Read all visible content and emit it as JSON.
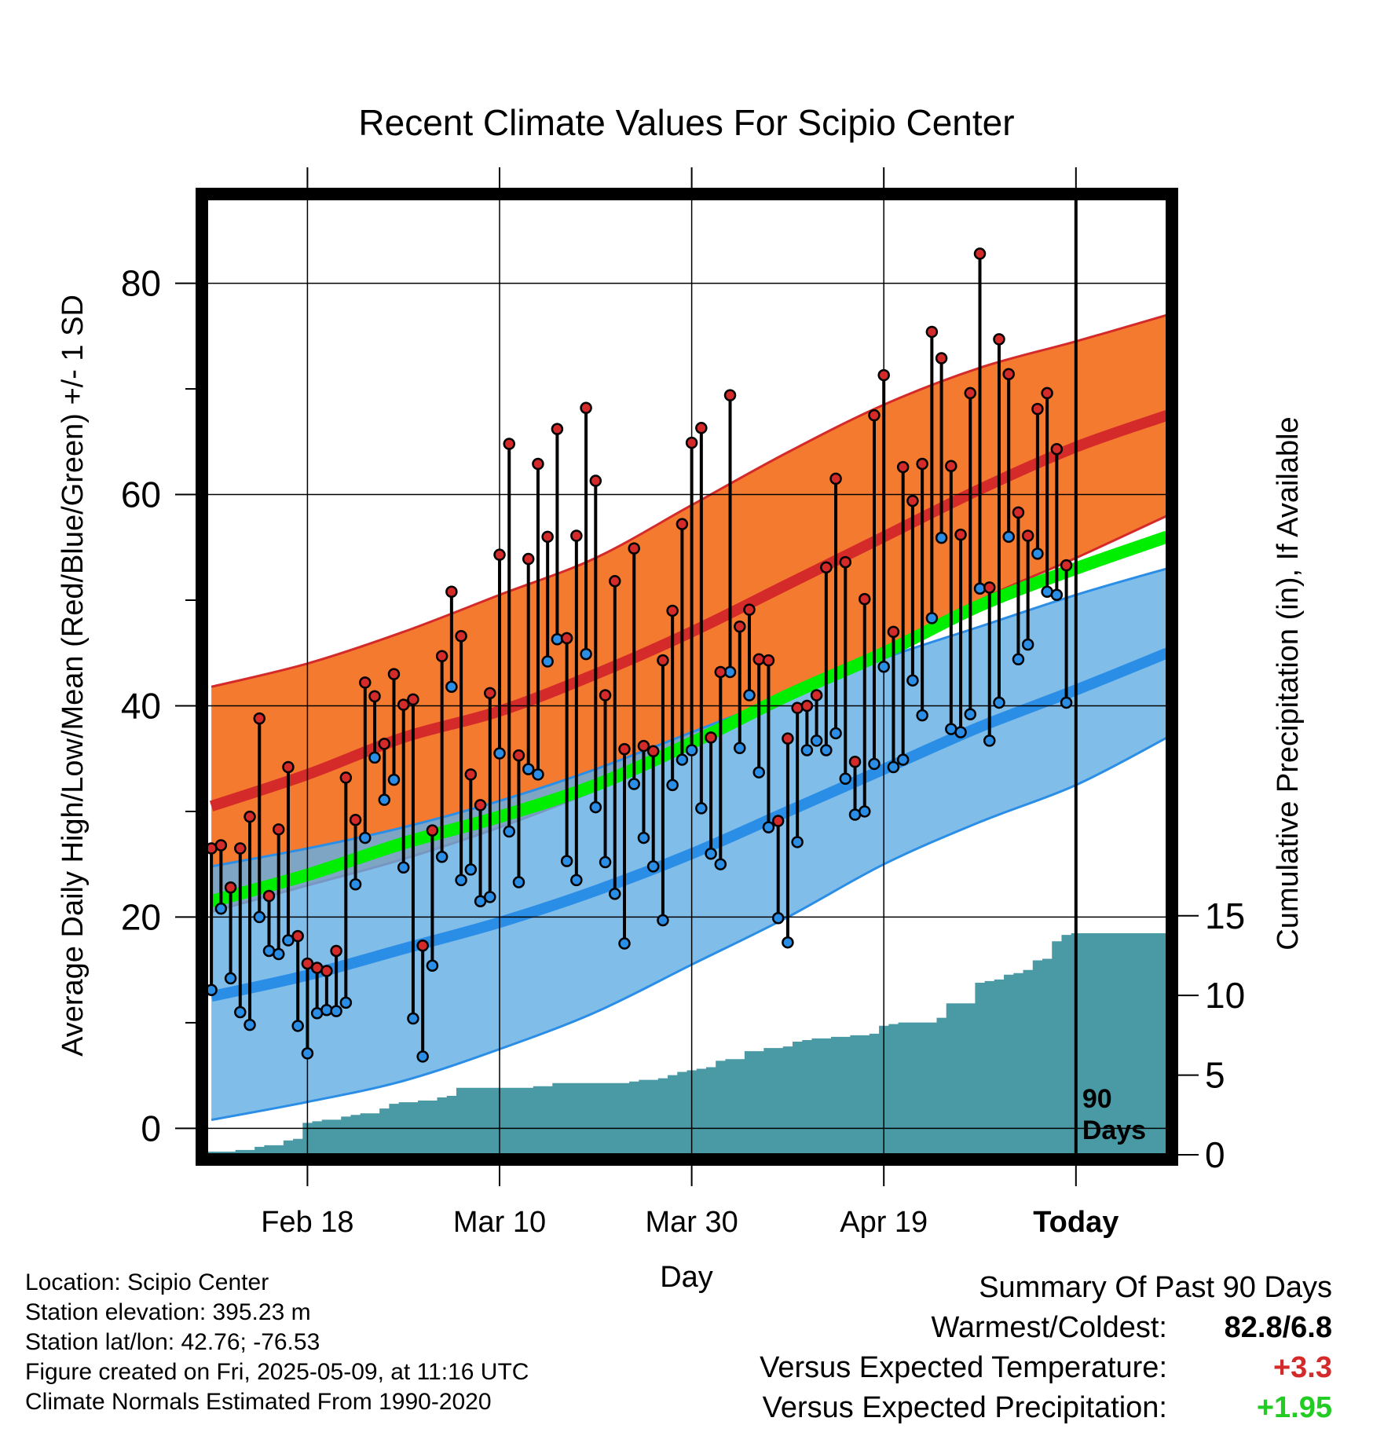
{
  "chart_data": {
    "type": "line",
    "title": "Recent Climate Values For Scipio Center",
    "xlabel": "Day",
    "ylabel": "Average Daily High/Low/Mean (Red/Blue/Green) +/- 1 SD",
    "y2label": "Cumulative Precipitation (in), If Available",
    "ylim": [
      -2.5,
      88
    ],
    "y2lim": [
      0,
      60
    ],
    "yticks": [
      0,
      20,
      40,
      60,
      80
    ],
    "y2ticks": [
      0,
      5,
      10,
      15
    ],
    "xticks": [
      {
        "label": "Feb 18",
        "day": 10
      },
      {
        "label": "Mar 10",
        "day": 30
      },
      {
        "label": "Mar 30",
        "day": 50
      },
      {
        "label": "Apr 19",
        "day": 70
      },
      {
        "label": "Today",
        "day": 90
      }
    ],
    "xlim": [
      -0.5,
      99.5
    ],
    "today_marker": {
      "day": 90,
      "label_line1": "90",
      "label_line2": "Days"
    },
    "grid": true,
    "series": [
      {
        "name": "High",
        "color": "#d42a2a"
      },
      {
        "name": "Low",
        "color": "#2a8ee6"
      },
      {
        "name": "Mean",
        "color": "#00ee00"
      }
    ],
    "normals": {
      "days": [
        0,
        10,
        20,
        30,
        40,
        50,
        60,
        70,
        80,
        90,
        99.5
      ],
      "high_mean": [
        30.5,
        33.5,
        37,
        39.5,
        43,
        47,
        51.5,
        56,
        60.5,
        64.5,
        67.5
      ],
      "high_upper": [
        41.8,
        44,
        47,
        50.5,
        54,
        59,
        64,
        68.5,
        72,
        74.5,
        77
      ],
      "high_lower": [
        20.5,
        23,
        25.5,
        28.5,
        32,
        36,
        40.5,
        45,
        50,
        54,
        58
      ],
      "low_mean": [
        12.5,
        14.5,
        17,
        19.5,
        22.5,
        26,
        30,
        34,
        38,
        41.5,
        45
      ],
      "low_upper": [
        24.8,
        26.5,
        28.5,
        31,
        34,
        37.5,
        41,
        44.5,
        47.5,
        50.5,
        53
      ],
      "low_lower": [
        0.8,
        2.5,
        4.5,
        7.5,
        11,
        15.5,
        20,
        25,
        29,
        32.5,
        37
      ],
      "avg_mean": [
        21.5,
        24,
        27,
        29.5,
        32.5,
        36.5,
        41,
        45,
        49.5,
        53,
        56
      ]
    },
    "daily_high": [
      26.5,
      26.8,
      22.8,
      26.5,
      29.5,
      38.8,
      22,
      28.3,
      34.2,
      18.2,
      15.6,
      15.2,
      14.9,
      16.8,
      33.2,
      29.2,
      42.2,
      40.9,
      36.4,
      43,
      40.1,
      40.6,
      17.3,
      28.2,
      44.7,
      50.8,
      46.6,
      33.5,
      30.6,
      41.2,
      54.3,
      64.8,
      35.3,
      53.9,
      62.9,
      56,
      66.2,
      46.4,
      56.1,
      68.2,
      61.3,
      41,
      51.8,
      35.9,
      54.9,
      36.2,
      35.7,
      44.3,
      49,
      57.2,
      64.9,
      66.3,
      37,
      43.2,
      69.4,
      47.5,
      49.1,
      44.4,
      44.3,
      29.1,
      36.9,
      39.8,
      40,
      41,
      53.1,
      61.5,
      53.6,
      34.7,
      50.1,
      67.5,
      71.3,
      47,
      62.6,
      59.4,
      62.9,
      75.4,
      72.9,
      62.7,
      56.2,
      69.6,
      82.8,
      51.2,
      74.7,
      71.4,
      58.3,
      56.1,
      68.1,
      69.6,
      64.3,
      53.3
    ],
    "daily_low": [
      13.1,
      20.8,
      14.2,
      11,
      9.8,
      20,
      16.8,
      16.5,
      17.8,
      9.7,
      7.1,
      10.9,
      11.2,
      11.1,
      11.9,
      23.1,
      27.5,
      35.1,
      31.1,
      33,
      24.7,
      10.4,
      6.8,
      15.4,
      25.7,
      41.8,
      23.5,
      24.5,
      21.5,
      21.9,
      35.5,
      28.1,
      23.3,
      34,
      33.5,
      44.2,
      46.3,
      25.3,
      23.5,
      44.9,
      30.4,
      25.2,
      22.2,
      17.5,
      32.6,
      27.5,
      24.8,
      19.7,
      32.5,
      34.9,
      35.8,
      30.3,
      26,
      25,
      43.2,
      36,
      41,
      33.7,
      28.5,
      19.9,
      17.6,
      27.1,
      35.8,
      36.7,
      35.8,
      37.4,
      33.1,
      29.7,
      30,
      34.5,
      43.7,
      34.2,
      34.9,
      42.4,
      39.1,
      48.3,
      55.9,
      37.8,
      37.5,
      39.2,
      51.1,
      36.7,
      40.3,
      56,
      44.4,
      45.8,
      54.4,
      50.8,
      50.5,
      40.3
    ],
    "precip_cum": [
      0.2,
      0.2,
      0.2,
      0.3,
      0.3,
      0.5,
      0.6,
      0.6,
      0.9,
      1,
      2,
      2.1,
      2.2,
      2.2,
      2.4,
      2.5,
      2.6,
      2.6,
      2.9,
      3.2,
      3.3,
      3.3,
      3.4,
      3.4,
      3.6,
      3.7,
      4.2,
      4.2,
      4.2,
      4.2,
      4.2,
      4.2,
      4.2,
      4.2,
      4.3,
      4.3,
      4.5,
      4.5,
      4.5,
      4.5,
      4.5,
      4.5,
      4.5,
      4.5,
      4.6,
      4.7,
      4.7,
      4.8,
      5,
      5.2,
      5.3,
      5.4,
      5.5,
      5.9,
      6,
      6,
      6.5,
      6.5,
      6.7,
      6.7,
      6.8,
      7.1,
      7.2,
      7.3,
      7.3,
      7.4,
      7.4,
      7.5,
      7.5,
      7.6,
      8.1,
      8.2,
      8.3,
      8.3,
      8.3,
      8.3,
      8.6,
      9.5,
      9.5,
      9.5,
      10.8,
      10.9,
      11,
      11.3,
      11.4,
      11.6,
      12.2,
      12.3,
      13.4,
      13.8,
      13.9,
      13.9,
      13.9,
      13.9,
      13.9,
      13.9,
      13.9,
      13.9,
      13.9,
      13.9
    ]
  },
  "meta": {
    "location": "Location: Scipio Center",
    "elevation": "Station elevation: 395.23 m",
    "latlon": "Station lat/lon: 42.76; -76.53",
    "created": "Figure created on Fri, 2025-05-09, at 11:16 UTC",
    "normals": "Climate Normals Estimated From 1990-2020"
  },
  "summary": {
    "heading": "Summary Of Past 90 Days",
    "warmest_coldest_label": "Warmest/Coldest:",
    "warmest_coldest_value": "82.8/6.8",
    "temp_label": "Versus Expected Temperature:",
    "temp_value": "+3.3",
    "temp_color": "#d42a2a",
    "precip_label": "Versus Expected Precipitation:",
    "precip_value": "+1.95",
    "precip_color": "#22cc22"
  }
}
